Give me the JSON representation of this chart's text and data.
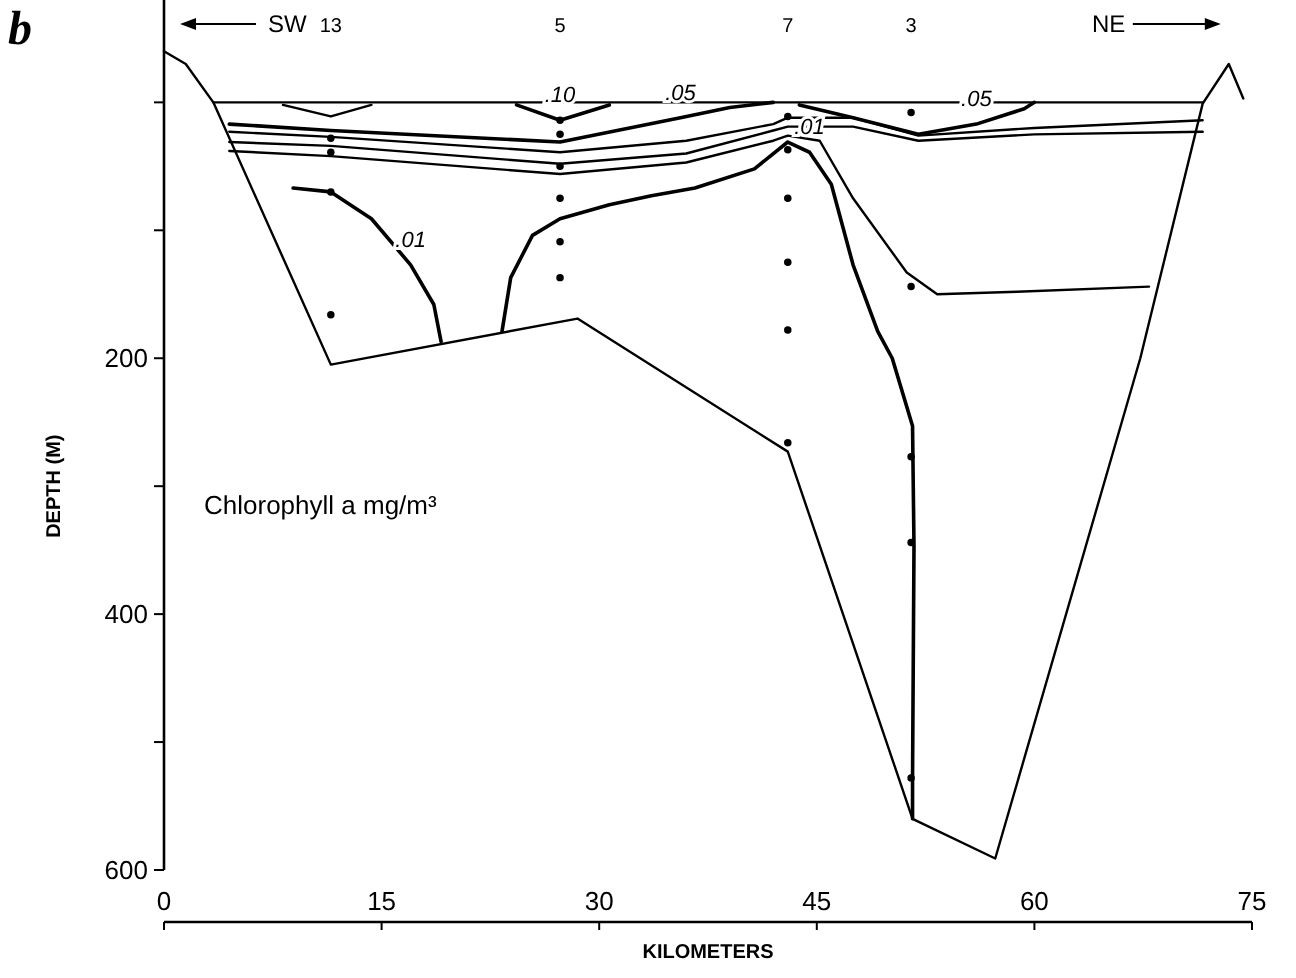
{
  "chart_data": {
    "type": "line",
    "xlabel": "KILOMETERS",
    "ylabel": "DEPTH (M)",
    "xlim": [
      0,
      75
    ],
    "xticks": [
      0,
      15,
      30,
      45,
      60,
      75
    ],
    "ylim": [
      600,
      -80
    ],
    "yticks": [
      {
        "value": 0,
        "label": null
      },
      {
        "value": 100,
        "label": null
      },
      200,
      {
        "value": 300,
        "label": null
      },
      400,
      {
        "value": 500,
        "label": null
      },
      600
    ],
    "grid": false,
    "legend": false,
    "marker": "none",
    "line_style": "solid",
    "annotations": [
      "b",
      "SW",
      "NE",
      "Chlorophyll a   mg/m³",
      "13",
      "5",
      "7",
      "3"
    ],
    "series": [
      {
        "color": "#000000",
        "x": [
          0,
          1.5,
          3.4,
          11.5,
          28.5,
          43,
          51.6,
          57.3,
          67.3,
          71.6,
          73.4,
          74.4
        ],
        "values": [
          -40,
          -30,
          0,
          205,
          169,
          273,
          560,
          591,
          200,
          1,
          -30,
          -3
        ]
      },
      {
        "color": "#000000",
        "x": [
          3.4,
          71.6
        ],
        "values": [
          0,
          0
        ]
      },
      {
        "color": "#000000",
        "x": [
          8.2,
          11.5,
          14.3
        ],
        "values": [
          2,
          11,
          2
        ]
      },
      {
        "name": ".10",
        "color": "#000000",
        "x": [
          24.3,
          27.3,
          30.7
        ],
        "values": [
          2,
          14,
          2
        ]
      },
      {
        "name": ".05",
        "color": "#000000",
        "x": [
          4.5,
          11.5,
          27.3,
          35.6,
          39,
          42
        ],
        "values": [
          17,
          22,
          31,
          12,
          4,
          0
        ]
      },
      {
        "name": ".05",
        "color": "#000000",
        "x": [
          43.8,
          47.5,
          52,
          56,
          59.3,
          60
        ],
        "values": [
          2,
          12,
          25,
          17,
          5,
          0
        ]
      },
      {
        "color": "#000000",
        "x": [
          4.5,
          11.5,
          27.3,
          36,
          42,
          43,
          47.5,
          52,
          60,
          71.6
        ],
        "values": [
          23,
          27,
          39,
          30,
          17,
          12,
          12,
          26,
          20,
          14
        ]
      },
      {
        "color": "#000000",
        "x": [
          4.5,
          11.5,
          27.3,
          36,
          42,
          43,
          47.5,
          52,
          60,
          71.6
        ],
        "values": [
          31,
          34,
          48,
          40,
          22,
          19,
          19,
          30,
          25,
          23
        ]
      },
      {
        "color": "#000000",
        "x": [
          4.5,
          11.5,
          27.3,
          36,
          42,
          43,
          45.2,
          47.5,
          51.2,
          53.3,
          58.8,
          67.9
        ],
        "values": [
          38,
          42,
          56,
          47,
          30,
          26,
          30,
          75,
          133,
          150,
          148,
          144
        ]
      },
      {
        "name": ".01",
        "color": "#000000",
        "x": [
          8.9,
          11.5,
          14.3,
          17,
          18.6,
          19.1
        ],
        "values": [
          67,
          70,
          91,
          127,
          158,
          187
        ]
      },
      {
        "name": ".01",
        "color": "#000000",
        "x": [
          23.3,
          23.9,
          25.4,
          27.3,
          30.7,
          33.6,
          36.6,
          40.7,
          43,
          44.5,
          46,
          47.5,
          49.2,
          50.2,
          51.6,
          51.7,
          51.6,
          51.6
        ],
        "values": [
          179,
          137,
          104,
          91,
          80,
          73,
          67,
          52,
          31,
          39,
          64,
          127,
          179,
          200,
          253,
          347,
          528,
          560
        ]
      },
      {
        "type": "scatter",
        "marker": "circle",
        "color": "#000000",
        "x": [
          11.5,
          11.5,
          11.5,
          11.5,
          27.3,
          27.3,
          27.3,
          27.3,
          27.3,
          27.3,
          43,
          43,
          43,
          43,
          43,
          43,
          51.5,
          51.5,
          51.5,
          51.5,
          51.5
        ],
        "values": [
          28,
          39,
          70,
          166,
          14,
          25,
          50,
          75,
          109,
          137,
          11,
          37,
          75,
          125,
          178,
          266,
          8,
          144,
          277,
          344,
          528
        ]
      }
    ]
  }
}
